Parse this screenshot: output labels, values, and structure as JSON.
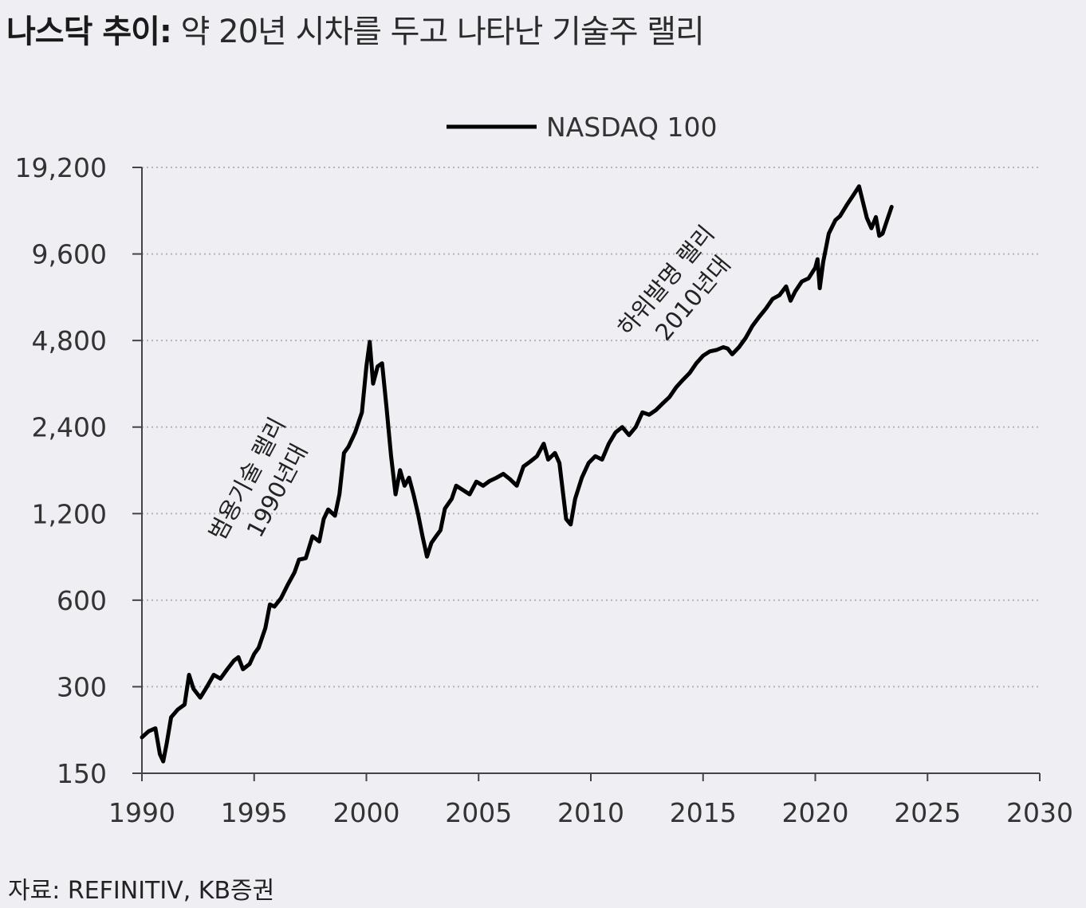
{
  "title": {
    "bold": "나스닥 추이:",
    "rest": "약 20년 시차를 두고 나타난 기술주 랠리"
  },
  "source": "자료: REFINITIV, KB증권",
  "colors": {
    "background": "#eeeef3",
    "line": "#000000",
    "grid": "#b5b5b5",
    "axis": "#444444",
    "text": "#333333"
  },
  "chart_data": {
    "type": "line",
    "title": "나스닥 추이: 약 20년 시차를 두고 나타난 기술주 랠리",
    "xlabel": "",
    "ylabel": "",
    "yscale": "log2",
    "grid": "horizontal dotted",
    "legend": "top-center",
    "xlim": [
      1990,
      2030
    ],
    "ylim": [
      150,
      19200
    ],
    "x_ticks": [
      1990,
      1995,
      2000,
      2005,
      2010,
      2015,
      2020,
      2025,
      2030
    ],
    "x_tick_labels": [
      "1990",
      "1995",
      "2000",
      "2005",
      "2010",
      "2015",
      "2020",
      "2025",
      "2030"
    ],
    "y_ticks": [
      150,
      300,
      600,
      1200,
      2400,
      4800,
      9600,
      19200
    ],
    "y_tick_labels": [
      "150",
      "300",
      "600",
      "1,200",
      "2,400",
      "4,800",
      "9,600",
      "19,200"
    ],
    "series": [
      {
        "name": "NASDAQ 100",
        "points": [
          [
            1990.0,
            200
          ],
          [
            1990.3,
            210
          ],
          [
            1990.6,
            215
          ],
          [
            1990.8,
            175
          ],
          [
            1990.95,
            165
          ],
          [
            1991.1,
            190
          ],
          [
            1991.3,
            235
          ],
          [
            1991.6,
            250
          ],
          [
            1991.9,
            260
          ],
          [
            1992.1,
            330
          ],
          [
            1992.3,
            295
          ],
          [
            1992.6,
            275
          ],
          [
            1992.9,
            300
          ],
          [
            1993.2,
            330
          ],
          [
            1993.5,
            320
          ],
          [
            1993.8,
            345
          ],
          [
            1994.1,
            370
          ],
          [
            1994.3,
            380
          ],
          [
            1994.5,
            345
          ],
          [
            1994.8,
            360
          ],
          [
            1995.0,
            390
          ],
          [
            1995.2,
            410
          ],
          [
            1995.5,
            480
          ],
          [
            1995.7,
            580
          ],
          [
            1995.9,
            570
          ],
          [
            1996.2,
            610
          ],
          [
            1996.5,
            680
          ],
          [
            1996.8,
            750
          ],
          [
            1997.0,
            830
          ],
          [
            1997.3,
            840
          ],
          [
            1997.6,
            1000
          ],
          [
            1997.9,
            960
          ],
          [
            1998.1,
            1150
          ],
          [
            1998.3,
            1240
          ],
          [
            1998.6,
            1180
          ],
          [
            1998.8,
            1400
          ],
          [
            1999.0,
            1950
          ],
          [
            1999.2,
            2050
          ],
          [
            1999.5,
            2300
          ],
          [
            1999.8,
            2700
          ],
          [
            2000.0,
            3900
          ],
          [
            2000.15,
            4750
          ],
          [
            2000.3,
            3400
          ],
          [
            2000.5,
            3900
          ],
          [
            2000.7,
            4000
          ],
          [
            2000.9,
            2800
          ],
          [
            2001.1,
            1900
          ],
          [
            2001.3,
            1400
          ],
          [
            2001.5,
            1700
          ],
          [
            2001.7,
            1500
          ],
          [
            2001.9,
            1600
          ],
          [
            2002.1,
            1400
          ],
          [
            2002.3,
            1200
          ],
          [
            2002.5,
            1000
          ],
          [
            2002.7,
            850
          ],
          [
            2002.9,
            950
          ],
          [
            2003.1,
            1000
          ],
          [
            2003.3,
            1050
          ],
          [
            2003.5,
            1250
          ],
          [
            2003.8,
            1350
          ],
          [
            2004.0,
            1500
          ],
          [
            2004.3,
            1450
          ],
          [
            2004.6,
            1400
          ],
          [
            2004.9,
            1550
          ],
          [
            2005.2,
            1500
          ],
          [
            2005.5,
            1560
          ],
          [
            2005.8,
            1600
          ],
          [
            2006.1,
            1650
          ],
          [
            2006.4,
            1580
          ],
          [
            2006.7,
            1500
          ],
          [
            2007.0,
            1750
          ],
          [
            2007.3,
            1820
          ],
          [
            2007.6,
            1900
          ],
          [
            2007.9,
            2100
          ],
          [
            2008.1,
            1850
          ],
          [
            2008.4,
            1950
          ],
          [
            2008.6,
            1800
          ],
          [
            2008.9,
            1150
          ],
          [
            2009.1,
            1100
          ],
          [
            2009.3,
            1350
          ],
          [
            2009.6,
            1600
          ],
          [
            2009.9,
            1800
          ],
          [
            2010.2,
            1900
          ],
          [
            2010.5,
            1850
          ],
          [
            2010.8,
            2100
          ],
          [
            2011.1,
            2300
          ],
          [
            2011.4,
            2400
          ],
          [
            2011.7,
            2250
          ],
          [
            2012.0,
            2400
          ],
          [
            2012.3,
            2700
          ],
          [
            2012.6,
            2650
          ],
          [
            2012.9,
            2750
          ],
          [
            2013.2,
            2900
          ],
          [
            2013.5,
            3050
          ],
          [
            2013.8,
            3300
          ],
          [
            2014.1,
            3500
          ],
          [
            2014.4,
            3700
          ],
          [
            2014.7,
            4000
          ],
          [
            2015.0,
            4250
          ],
          [
            2015.3,
            4400
          ],
          [
            2015.6,
            4450
          ],
          [
            2015.9,
            4550
          ],
          [
            2016.1,
            4500
          ],
          [
            2016.3,
            4300
          ],
          [
            2016.6,
            4550
          ],
          [
            2016.9,
            4900
          ],
          [
            2017.2,
            5400
          ],
          [
            2017.5,
            5800
          ],
          [
            2017.8,
            6200
          ],
          [
            2018.1,
            6700
          ],
          [
            2018.4,
            6900
          ],
          [
            2018.7,
            7400
          ],
          [
            2018.9,
            6600
          ],
          [
            2019.1,
            7100
          ],
          [
            2019.4,
            7700
          ],
          [
            2019.7,
            7900
          ],
          [
            2020.0,
            8600
          ],
          [
            2020.1,
            9200
          ],
          [
            2020.2,
            7300
          ],
          [
            2020.35,
            9000
          ],
          [
            2020.6,
            11300
          ],
          [
            2020.9,
            12600
          ],
          [
            2021.1,
            13000
          ],
          [
            2021.4,
            14200
          ],
          [
            2021.7,
            15400
          ],
          [
            2021.95,
            16500
          ],
          [
            2022.1,
            14800
          ],
          [
            2022.3,
            12800
          ],
          [
            2022.5,
            11800
          ],
          [
            2022.7,
            12900
          ],
          [
            2022.85,
            11100
          ],
          [
            2023.0,
            11300
          ],
          [
            2023.2,
            12600
          ],
          [
            2023.4,
            14000
          ]
        ]
      }
    ],
    "annotations": [
      {
        "line1": "범용기술 랠리",
        "line2": "1990년대"
      },
      {
        "line1": "하위발명 랠리",
        "line2": "2010년대"
      }
    ]
  }
}
